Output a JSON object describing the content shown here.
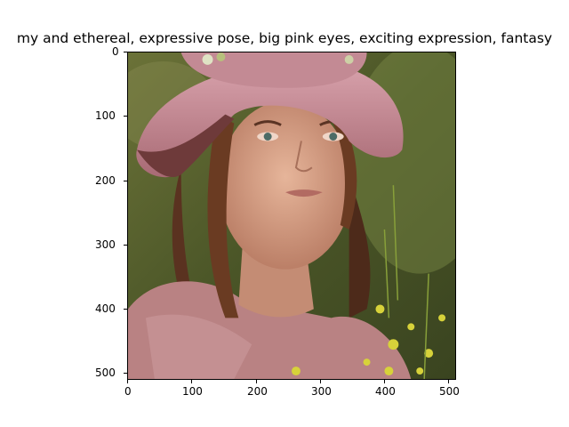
{
  "title": "my and ethereal, expressive pose, big pink eyes, exciting expression, fantasy",
  "image": {
    "subject": "portrait of a young woman in a pink floppy hat in a grassy field",
    "palette": {
      "background_dark": "#3d4a22",
      "background_light": "#7a8a44",
      "hat": "#c98b97",
      "hat_brim_shadow": "#6e3a3a",
      "skin": "#d9a58c",
      "hair": "#5a3220",
      "shirt": "#b98283",
      "flowers": "#d7d23a"
    }
  },
  "x_ticks": [
    "0",
    "100",
    "200",
    "300",
    "400",
    "500"
  ],
  "y_ticks": [
    "0",
    "100",
    "200",
    "300",
    "400",
    "500"
  ]
}
